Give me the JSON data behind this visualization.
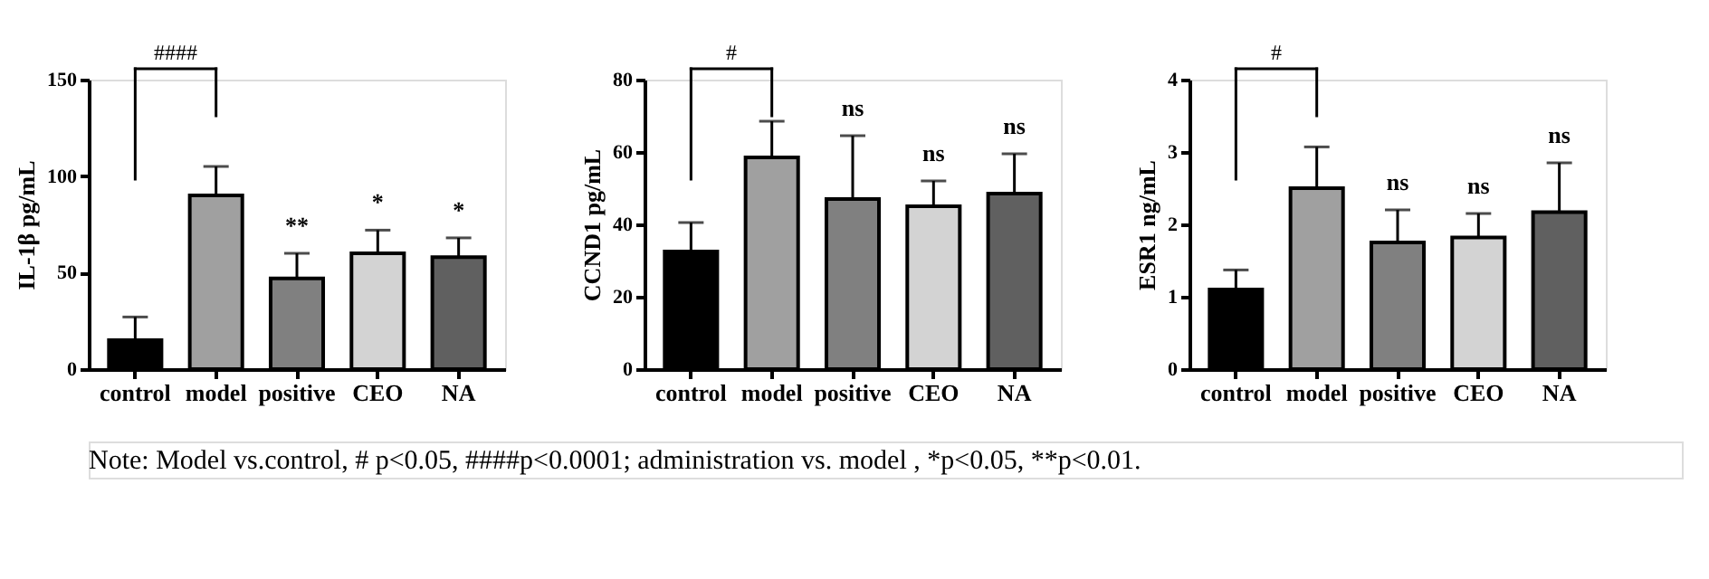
{
  "chart_data": [
    {
      "type": "bar",
      "ylabel": "IL-1β pg/mL",
      "categories": [
        "control",
        "model",
        "positive",
        "CEO",
        "NA"
      ],
      "values": [
        15,
        90,
        47,
        60,
        58
      ],
      "colors": [
        "#000000",
        "#a0a0a0",
        "#808080",
        "#d3d3d3",
        "#606060"
      ],
      "errors": [
        [
          15,
          27
        ],
        [
          90,
          105
        ],
        [
          47,
          60
        ],
        [
          60,
          72
        ],
        [
          58,
          68
        ]
      ],
      "ylim": [
        0,
        150
      ],
      "yticks": [
        0,
        50,
        100,
        150
      ],
      "annotations": [
        "####",
        "**",
        "*",
        "*"
      ]
    },
    {
      "type": "bar",
      "ylabel": "CCND1 pg/mL",
      "categories": [
        "control",
        "model",
        "positive",
        "CEO",
        "NA"
      ],
      "values": [
        32.5,
        58.5,
        47,
        45,
        48.5
      ],
      "colors": [
        "#000000",
        "#a0a0a0",
        "#808080",
        "#d3d3d3",
        "#606060"
      ],
      "errors": [
        [
          32.5,
          40.5
        ],
        [
          58.5,
          68.5
        ],
        [
          47,
          64.5
        ],
        [
          45,
          52
        ],
        [
          48.5,
          59.5
        ]
      ],
      "ylim": [
        0,
        80
      ],
      "yticks": [
        0,
        20,
        40,
        60,
        80
      ],
      "annotations": [
        "#",
        "ns",
        "ns",
        "ns"
      ]
    },
    {
      "type": "bar",
      "ylabel": "ESR1 ng/mL",
      "categories": [
        "control",
        "model",
        "positive",
        "CEO",
        "NA"
      ],
      "values": [
        1.1,
        2.5,
        1.75,
        1.82,
        2.17
      ],
      "colors": [
        "#000000",
        "#a0a0a0",
        "#808080",
        "#d3d3d3",
        "#606060"
      ],
      "errors": [
        [
          1.1,
          1.37
        ],
        [
          2.5,
          3.07
        ],
        [
          1.75,
          2.2
        ],
        [
          1.82,
          2.15
        ],
        [
          2.17,
          2.85
        ]
      ],
      "ylim": [
        0,
        4
      ],
      "yticks": [
        0,
        1,
        2,
        3,
        4
      ],
      "annotations": [
        "#",
        "ns",
        "ns",
        "ns",
        "Note: Model vs.control, # p<0.05, ####p<0.0001; administration vs. model , *p<0.05, **p<0.01."
      ]
    }
  ]
}
